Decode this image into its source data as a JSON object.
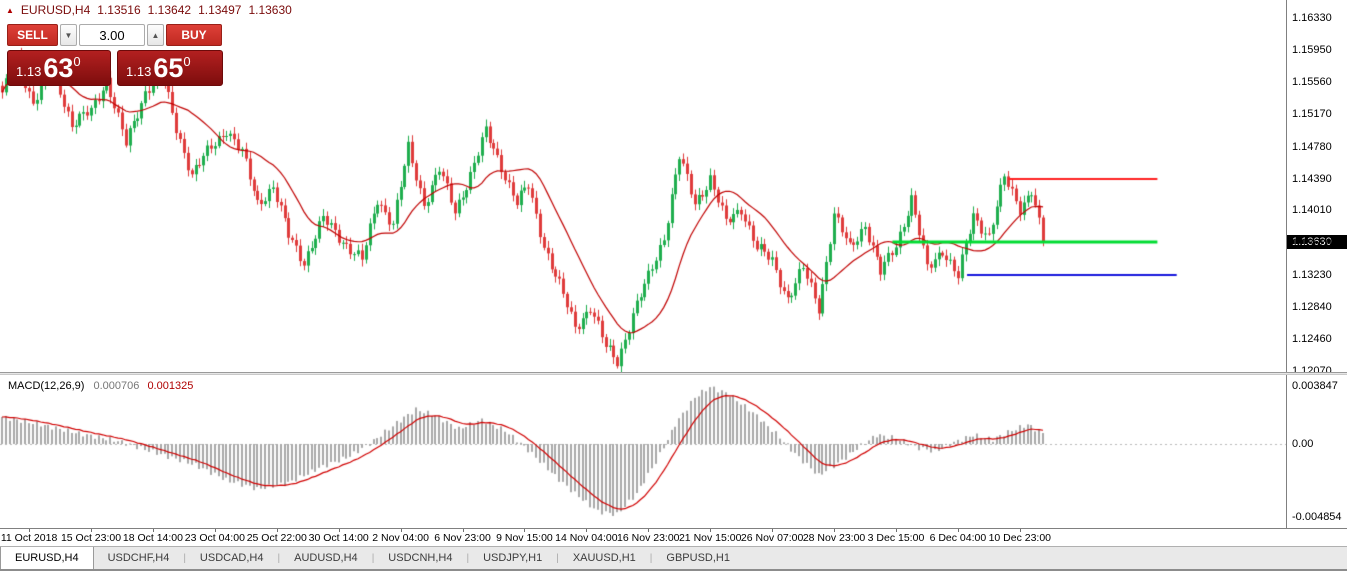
{
  "colors": {
    "candle_up": "#1fae4e",
    "candle_down": "#df3b3b",
    "ma_line": "#c00000",
    "macd_histogram": "#a8a8a8",
    "macd_signal": "#d00000",
    "badge_bg": "#000000",
    "button_red": "#c92c24",
    "header_text": "#7a0b0b"
  },
  "header": {
    "symbol": "EURUSD,H4",
    "open": "1.13516",
    "high": "1.13642",
    "low": "1.13497",
    "close": "1.13630"
  },
  "trade_panel": {
    "sell_label": "SELL",
    "buy_label": "BUY",
    "volume": "3.00",
    "stepper_down": "▼",
    "stepper_up": "▲",
    "sell_price": {
      "prefix": "1.13",
      "big": "63",
      "sup": "0"
    },
    "buy_price": {
      "prefix": "1.13",
      "big": "65",
      "sup": "0"
    }
  },
  "price_axis": {
    "labels": [
      {
        "text": "1.16330",
        "value": 1.1633
      },
      {
        "text": "1.15950",
        "value": 1.1595
      },
      {
        "text": "1.15560",
        "value": 1.1556
      },
      {
        "text": "1.15170",
        "value": 1.1517
      },
      {
        "text": "1.14780",
        "value": 1.1478
      },
      {
        "text": "1.14390",
        "value": 1.1439
      },
      {
        "text": "1.14010",
        "value": 1.1401
      },
      {
        "text": "1.13620",
        "value": 1.1362
      },
      {
        "text": "1.13230",
        "value": 1.1323
      },
      {
        "text": "1.12840",
        "value": 1.1284
      },
      {
        "text": "1.12460",
        "value": 1.1246
      },
      {
        "text": "1.12070",
        "value": 1.1207
      }
    ],
    "badge": {
      "text": "1.13630",
      "value": 1.1363
    }
  },
  "time_axis": {
    "labels": [
      {
        "text": "11 Oct 2018",
        "bar": 7
      },
      {
        "text": "15 Oct 23:00",
        "bar": 23
      },
      {
        "text": "18 Oct 14:00",
        "bar": 39
      },
      {
        "text": "23 Oct 04:00",
        "bar": 55
      },
      {
        "text": "25 Oct 22:00",
        "bar": 71
      },
      {
        "text": "30 Oct 14:00",
        "bar": 87
      },
      {
        "text": "2 Nov 04:00",
        "bar": 103
      },
      {
        "text": "6 Nov 23:00",
        "bar": 119
      },
      {
        "text": "9 Nov 15:00",
        "bar": 135
      },
      {
        "text": "14 Nov 04:00",
        "bar": 151
      },
      {
        "text": "16 Nov 23:00",
        "bar": 167
      },
      {
        "text": "21 Nov 15:00",
        "bar": 183
      },
      {
        "text": "26 Nov 07:00",
        "bar": 199
      },
      {
        "text": "28 Nov 23:00",
        "bar": 215
      },
      {
        "text": "3 Dec 15:00",
        "bar": 231
      },
      {
        "text": "6 Dec 04:00",
        "bar": 247
      },
      {
        "text": "10 Dec 23:00",
        "bar": 263
      }
    ]
  },
  "macd_panel": {
    "name": "MACD(12,26,9)",
    "value_main": "0.000706",
    "value_signal": "0.001325",
    "axis_labels": [
      {
        "text": "0.003847",
        "value": 0.003847
      },
      {
        "text": "0.00",
        "value": 0
      },
      {
        "text": "-0.004854",
        "value": -0.004854
      }
    ]
  },
  "tabs": [
    {
      "label": "EURUSD,H4",
      "active": true
    },
    {
      "label": "USDCHF,H4",
      "active": false
    },
    {
      "label": "USDCAD,H4",
      "active": false
    },
    {
      "label": "AUDUSD,H4",
      "active": false
    },
    {
      "label": "USDCNH,H4",
      "active": false
    },
    {
      "label": "USDJPY,H1",
      "active": false
    },
    {
      "label": "XAUUSD,H1",
      "active": false
    },
    {
      "label": "GBPUSD,H1",
      "active": false
    }
  ],
  "chart_data": {
    "type": "candlestick",
    "symbol": "EURUSD",
    "timeframe": "H4",
    "indicator": "MACD(12,26,9)",
    "bar_count": 270,
    "price_range": {
      "min": 1.1206,
      "max": 1.1655
    },
    "last_close": 1.1363,
    "close_waypoints": [
      [
        0,
        1.154
      ],
      [
        4,
        1.1585
      ],
      [
        8,
        1.153
      ],
      [
        13,
        1.1575
      ],
      [
        18,
        1.1505
      ],
      [
        23,
        1.152
      ],
      [
        27,
        1.156
      ],
      [
        32,
        1.148
      ],
      [
        37,
        1.1545
      ],
      [
        41,
        1.157
      ],
      [
        45,
        1.15
      ],
      [
        49,
        1.1445
      ],
      [
        53,
        1.147
      ],
      [
        58,
        1.15
      ],
      [
        62,
        1.147
      ],
      [
        66,
        1.141
      ],
      [
        70,
        1.143
      ],
      [
        74,
        1.137
      ],
      [
        78,
        1.134
      ],
      [
        83,
        1.139
      ],
      [
        88,
        1.1365
      ],
      [
        93,
        1.134
      ],
      [
        97,
        1.1415
      ],
      [
        101,
        1.1385
      ],
      [
        105,
        1.1475
      ],
      [
        109,
        1.141
      ],
      [
        113,
        1.145
      ],
      [
        117,
        1.14
      ],
      [
        121,
        1.1445
      ],
      [
        125,
        1.1495
      ],
      [
        129,
        1.1455
      ],
      [
        133,
        1.141
      ],
      [
        136,
        1.143
      ],
      [
        140,
        1.136
      ],
      [
        144,
        1.131
      ],
      [
        148,
        1.126
      ],
      [
        152,
        1.1285
      ],
      [
        156,
        1.1235
      ],
      [
        159,
        1.122
      ],
      [
        163,
        1.1275
      ],
      [
        167,
        1.132
      ],
      [
        171,
        1.137
      ],
      [
        175,
        1.1465
      ],
      [
        179,
        1.141
      ],
      [
        183,
        1.144
      ],
      [
        187,
        1.1385
      ],
      [
        191,
        1.1405
      ],
      [
        195,
        1.1355
      ],
      [
        199,
        1.134
      ],
      [
        203,
        1.1295
      ],
      [
        207,
        1.133
      ],
      [
        211,
        1.1285
      ],
      [
        215,
        1.1395
      ],
      [
        219,
        1.1355
      ],
      [
        223,
        1.1385
      ],
      [
        227,
        1.1325
      ],
      [
        231,
        1.136
      ],
      [
        235,
        1.1415
      ],
      [
        239,
        1.133
      ],
      [
        243,
        1.1355
      ],
      [
        247,
        1.132
      ],
      [
        251,
        1.1395
      ],
      [
        255,
        1.137
      ],
      [
        259,
        1.144
      ],
      [
        263,
        1.1405
      ],
      [
        266,
        1.1425
      ],
      [
        269,
        1.1363
      ]
    ],
    "ma": {
      "period": 16,
      "color": "#c00000"
    },
    "hlines": [
      {
        "price": 1.1439,
        "color": "#ff1f1f",
        "from_frac": 0.784,
        "to_frac": 0.9,
        "thickness": 2
      },
      {
        "price": 1.1363,
        "color": "#00dc32",
        "from_frac": 0.694,
        "to_frac": 0.9,
        "thickness": 3
      },
      {
        "price": 1.1323,
        "color": "#1414dc",
        "from_frac": 0.752,
        "to_frac": 0.915,
        "thickness": 2
      }
    ],
    "macd": {
      "range": {
        "min": -0.0056,
        "max": 0.0046
      },
      "signal_period": 9,
      "waypoints": [
        [
          0,
          0.0018
        ],
        [
          10,
          0.0013
        ],
        [
          20,
          0.0007
        ],
        [
          30,
          0.0002
        ],
        [
          40,
          -0.0006
        ],
        [
          50,
          -0.0014
        ],
        [
          58,
          -0.0024
        ],
        [
          66,
          -0.003
        ],
        [
          74,
          -0.0026
        ],
        [
          82,
          -0.0016
        ],
        [
          90,
          -0.0008
        ],
        [
          96,
          0.0002
        ],
        [
          102,
          0.0014
        ],
        [
          107,
          0.0023
        ],
        [
          112,
          0.0019
        ],
        [
          118,
          0.001
        ],
        [
          124,
          0.0016
        ],
        [
          130,
          0.0009
        ],
        [
          136,
          -0.0004
        ],
        [
          142,
          -0.0019
        ],
        [
          148,
          -0.0033
        ],
        [
          154,
          -0.0045
        ],
        [
          159,
          -0.0047
        ],
        [
          164,
          -0.0033
        ],
        [
          169,
          -0.0012
        ],
        [
          174,
          0.0013
        ],
        [
          179,
          0.0031
        ],
        [
          183,
          0.0038
        ],
        [
          188,
          0.0033
        ],
        [
          194,
          0.0021
        ],
        [
          200,
          0.0007
        ],
        [
          206,
          -0.0009
        ],
        [
          211,
          -0.0021
        ],
        [
          216,
          -0.0013
        ],
        [
          221,
          -0.0003
        ],
        [
          226,
          0.0006
        ],
        [
          231,
          0.0004
        ],
        [
          236,
          -0.0002
        ],
        [
          241,
          -0.0005
        ],
        [
          246,
          0.0001
        ],
        [
          251,
          0.0006
        ],
        [
          256,
          0.0003
        ],
        [
          261,
          0.0009
        ],
        [
          265,
          0.0013
        ],
        [
          269,
          0.0007
        ]
      ]
    }
  }
}
